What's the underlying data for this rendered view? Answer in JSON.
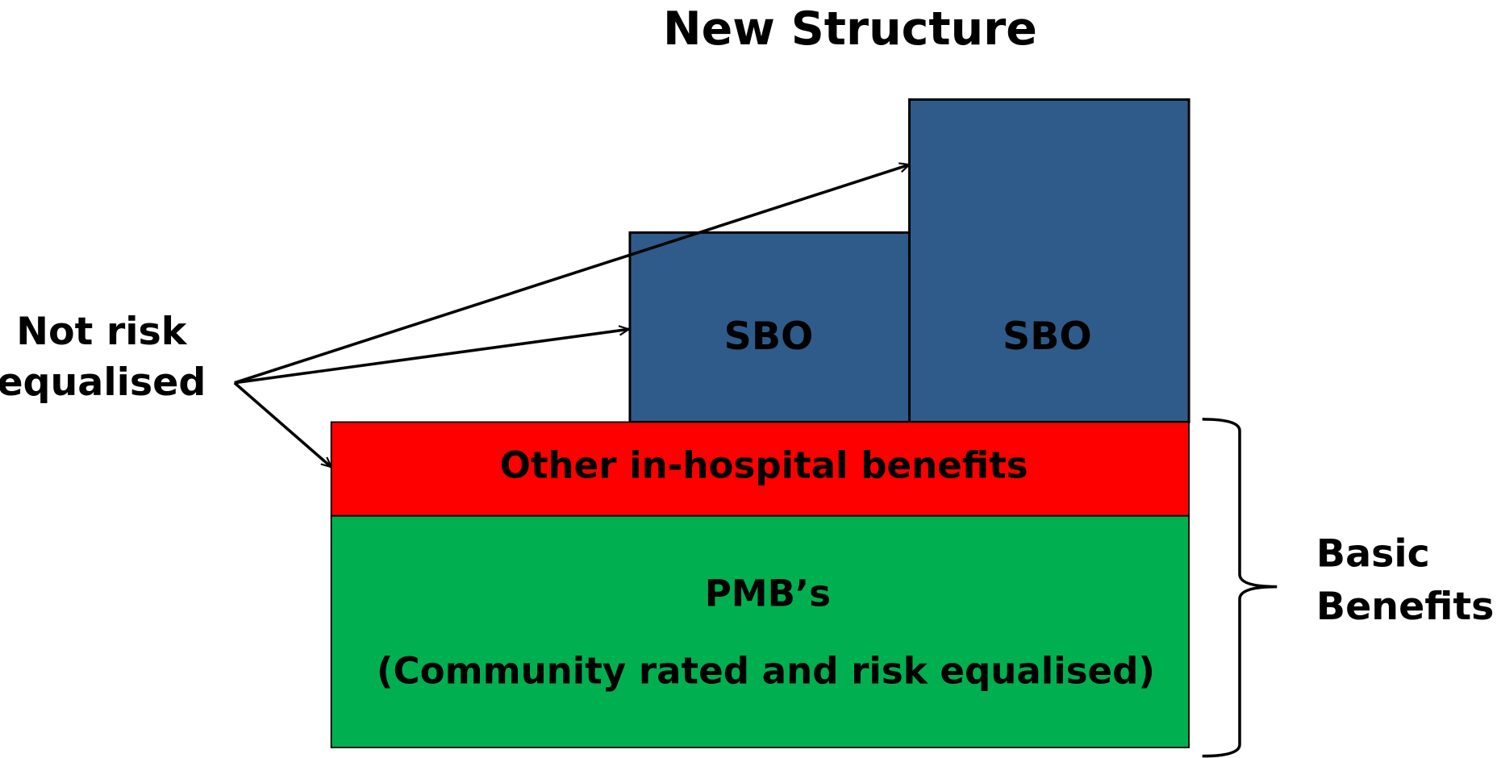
{
  "title": "New Structure",
  "blocks": {
    "sbo_left": "SBO",
    "sbo_right": "SBO",
    "other": "Other in-hospital benefits",
    "pmb": {
      "title": "PMB’s",
      "subtitle": "(Community rated and risk equalised)"
    }
  },
  "left_label": [
    "Not risk",
    "equalised"
  ],
  "right_label": [
    "Basic",
    "Benefits"
  ]
}
